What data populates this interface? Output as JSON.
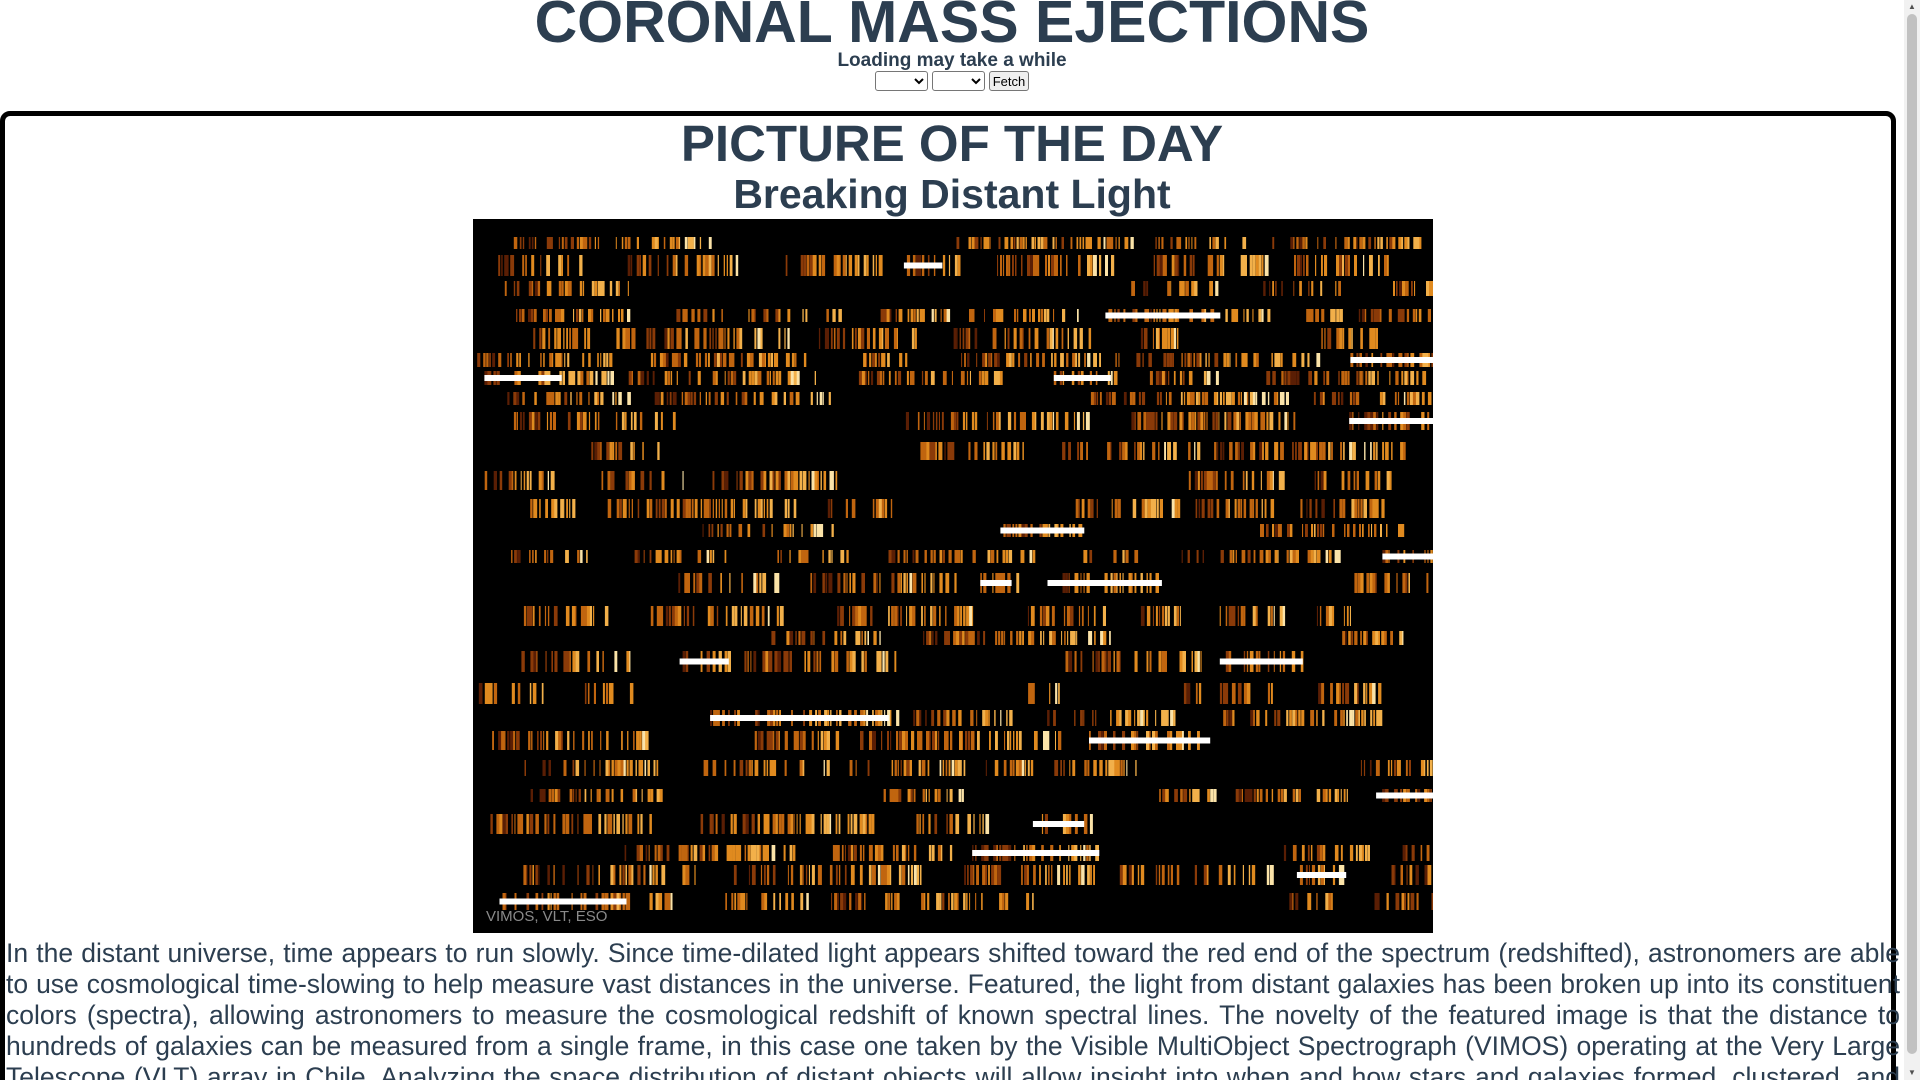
{
  "header": {
    "title": "CORONAL MASS EJECTIONS",
    "loading_text": "Loading may take a while",
    "select_1_value": "",
    "select_2_value": "",
    "fetch_label": "Fetch"
  },
  "picture_of_the_day": {
    "heading": "PICTURE OF THE DAY",
    "title": "Breaking Distant Light",
    "image_credit": "VIMOS, VLT, ESO",
    "description": "In the distant universe, time appears to run slowly. Since time-dilated light appears shifted toward the red end of the spectrum (redshifted), astronomers are able to use cosmological time-slowing to help measure vast distances in the universe. Featured, the light from distant galaxies has been broken up into its constituent colors (spectra), allowing astronomers to measure the cosmological redshift of known spectral lines. The novelty of the featured image is that the distance to hundreds of galaxies can be measured from a single frame, in this case one taken by the Visible MultiObject Spectrograph (VIMOS) operating at the Very Large Telescope (VLT) array in Chile. Analyzing the space distribution of distant objects will allow insight into when and how stars and galaxies formed, clustered, and evolved in the early universe."
  },
  "colors": {
    "text": "#2c3e50",
    "panel_border": "#000000",
    "image_background": "#000000",
    "spectra_palette": [
      "#5a1e04",
      "#8a3a08",
      "#c0650f",
      "#e08a1f",
      "#f2b04a",
      "#fbe3a8",
      "#ffffff"
    ]
  },
  "icons": {
    "scroll_up": "triangle-up-icon",
    "scroll_down": "triangle-down-icon"
  }
}
